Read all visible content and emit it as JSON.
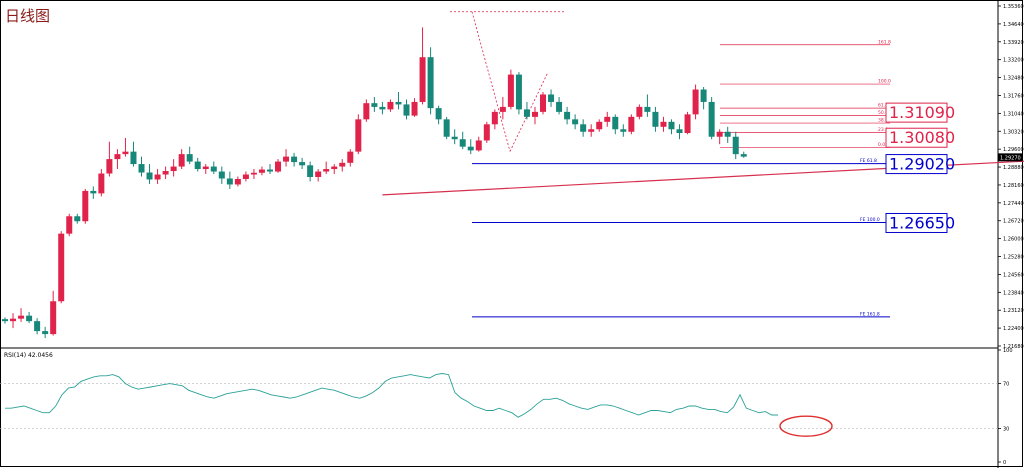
{
  "title": "日线图",
  "colors": {
    "up": "#e0234a",
    "down": "#17877a",
    "trendline": "#d7304f",
    "fibo": "#e0234a",
    "fe": "#0000cc",
    "rsi": "#2aa198",
    "axis": "#000000",
    "grid": "#b8b8b8",
    "circle": "#e03030"
  },
  "chart_data": [
    {
      "type": "candlestick",
      "title": "日线图",
      "ylim": [
        1.2168,
        1.3536
      ],
      "y_ticks": [
        "1.35360",
        "1.34640",
        "1.33920",
        "1.33200",
        "1.32480",
        "1.31760",
        "1.31040",
        "1.30320",
        "1.29600",
        "1.28880",
        "1.28160",
        "1.27440",
        "1.26720",
        "1.26000",
        "1.25280",
        "1.24560",
        "1.23840",
        "1.23120",
        "1.22400",
        "1.21680"
      ],
      "current_price": "1.29270",
      "candles": [
        [
          1.2276,
          1.2283,
          1.2258,
          1.2268
        ],
        [
          1.2268,
          1.23,
          1.224,
          1.2278
        ],
        [
          1.2278,
          1.232,
          1.2265,
          1.229
        ],
        [
          1.229,
          1.2305,
          1.226,
          1.2268
        ],
        [
          1.2268,
          1.228,
          1.2215,
          1.2228
        ],
        [
          1.2228,
          1.2245,
          1.22,
          1.2216
        ],
        [
          1.2216,
          1.239,
          1.221,
          1.2348
        ],
        [
          1.2348,
          1.263,
          1.234,
          1.262
        ],
        [
          1.262,
          1.27,
          1.261,
          1.269
        ],
        [
          1.269,
          1.27,
          1.266,
          1.267
        ],
        [
          1.267,
          1.28,
          1.266,
          1.2792
        ],
        [
          1.2792,
          1.281,
          1.276,
          1.2782
        ],
        [
          1.2782,
          1.288,
          1.277,
          1.2862
        ],
        [
          1.2862,
          1.299,
          1.285,
          1.292
        ],
        [
          1.292,
          1.296,
          1.288,
          1.294
        ],
        [
          1.294,
          1.3005,
          1.293,
          1.295
        ],
        [
          1.295,
          1.299,
          1.289,
          1.29
        ],
        [
          1.29,
          1.293,
          1.285,
          1.2866
        ],
        [
          1.2866,
          1.29,
          1.282,
          1.2838
        ],
        [
          1.2838,
          1.288,
          1.282,
          1.2858
        ],
        [
          1.2858,
          1.289,
          1.284,
          1.2872
        ],
        [
          1.2872,
          1.292,
          1.285,
          1.289
        ],
        [
          1.289,
          1.296,
          1.288,
          1.294
        ],
        [
          1.294,
          1.297,
          1.29,
          1.291
        ],
        [
          1.291,
          1.2925,
          1.287,
          1.288
        ],
        [
          1.288,
          1.29,
          1.286,
          1.289
        ],
        [
          1.289,
          1.291,
          1.286,
          1.287
        ],
        [
          1.287,
          1.289,
          1.282,
          1.2842
        ],
        [
          1.2842,
          1.287,
          1.28,
          1.2818
        ],
        [
          1.2818,
          1.285,
          1.281,
          1.284
        ],
        [
          1.284,
          1.287,
          1.283,
          1.2858
        ],
        [
          1.2858,
          1.288,
          1.284,
          1.2865
        ],
        [
          1.2865,
          1.289,
          1.2855,
          1.2878
        ],
        [
          1.2878,
          1.29,
          1.286,
          1.287
        ],
        [
          1.287,
          1.292,
          1.2865,
          1.291
        ],
        [
          1.291,
          1.296,
          1.289,
          1.293
        ],
        [
          1.293,
          1.2945,
          1.289,
          1.2908
        ],
        [
          1.2908,
          1.2925,
          1.288,
          1.2895
        ],
        [
          1.2895,
          1.291,
          1.283,
          1.2848
        ],
        [
          1.2848,
          1.288,
          1.283,
          1.287
        ],
        [
          1.287,
          1.291,
          1.286,
          1.288
        ],
        [
          1.288,
          1.29,
          1.286,
          1.289
        ],
        [
          1.289,
          1.292,
          1.287,
          1.2905
        ],
        [
          1.2905,
          1.296,
          1.289,
          1.295
        ],
        [
          1.295,
          1.31,
          1.294,
          1.308
        ],
        [
          1.308,
          1.316,
          1.307,
          1.3145
        ],
        [
          1.3145,
          1.317,
          1.311,
          1.313
        ],
        [
          1.313,
          1.315,
          1.31,
          1.312
        ],
        [
          1.312,
          1.316,
          1.311,
          1.315
        ],
        [
          1.315,
          1.319,
          1.312,
          1.314
        ],
        [
          1.314,
          1.316,
          1.308,
          1.3095
        ],
        [
          1.3095,
          1.3165,
          1.309,
          1.315
        ],
        [
          1.315,
          1.345,
          1.314,
          1.333
        ],
        [
          1.333,
          1.337,
          1.31,
          1.3125
        ],
        [
          1.3125,
          1.3135,
          1.306,
          1.308
        ],
        [
          1.308,
          1.309,
          1.3,
          1.301
        ],
        [
          1.301,
          1.304,
          1.298,
          1.3
        ],
        [
          1.3,
          1.303,
          1.296,
          1.297
        ],
        [
          1.297,
          1.3,
          1.294,
          1.2955
        ],
        [
          1.2955,
          1.301,
          1.295,
          1.2995
        ],
        [
          1.2995,
          1.307,
          1.2985,
          1.306
        ],
        [
          1.306,
          1.312,
          1.304,
          1.311
        ],
        [
          1.311,
          1.317,
          1.308,
          1.313
        ],
        [
          1.313,
          1.328,
          1.312,
          1.326
        ],
        [
          1.326,
          1.327,
          1.31,
          1.312
        ],
        [
          1.312,
          1.315,
          1.308,
          1.309
        ],
        [
          1.309,
          1.313,
          1.306,
          1.311
        ],
        [
          1.311,
          1.319,
          1.31,
          1.318
        ],
        [
          1.318,
          1.32,
          1.313,
          1.315
        ],
        [
          1.315,
          1.317,
          1.31,
          1.311
        ],
        [
          1.311,
          1.313,
          1.306,
          1.308
        ],
        [
          1.308,
          1.31,
          1.304,
          1.306
        ],
        [
          1.306,
          1.308,
          1.301,
          1.303
        ],
        [
          1.303,
          1.306,
          1.301,
          1.304
        ],
        [
          1.304,
          1.308,
          1.303,
          1.307
        ],
        [
          1.307,
          1.311,
          1.305,
          1.309
        ],
        [
          1.309,
          1.31,
          1.302,
          1.304
        ],
        [
          1.304,
          1.306,
          1.301,
          1.303
        ],
        [
          1.303,
          1.31,
          1.302,
          1.309
        ],
        [
          1.309,
          1.314,
          1.308,
          1.313
        ],
        [
          1.313,
          1.318,
          1.309,
          1.311
        ],
        [
          1.311,
          1.313,
          1.303,
          1.305
        ],
        [
          1.305,
          1.309,
          1.303,
          1.307
        ],
        [
          1.307,
          1.308,
          1.302,
          1.304
        ],
        [
          1.304,
          1.306,
          1.3,
          1.3025
        ],
        [
          1.3025,
          1.311,
          1.302,
          1.31
        ],
        [
          1.31,
          1.322,
          1.308,
          1.32
        ],
        [
          1.32,
          1.321,
          1.312,
          1.315
        ],
        [
          1.315,
          1.317,
          1.3,
          1.301
        ],
        [
          1.301,
          1.304,
          1.298,
          1.303
        ],
        [
          1.303,
          1.305,
          1.2985,
          1.301
        ],
        [
          1.301,
          1.303,
          1.292,
          1.294
        ],
        [
          1.294,
          1.295,
          1.2925,
          1.293
        ]
      ],
      "trendline": {
        "x": [
          47,
          211
        ],
        "y": [
          1.2776,
          1.3055
        ]
      },
      "fibonacci": {
        "levels": [
          {
            "label": "161.8",
            "y": 1.338
          },
          {
            "label": "100.0",
            "y": 1.3222
          },
          {
            "label": "61.8",
            "y": 1.3125
          },
          {
            "label": "50.0",
            "y": 1.3095
          },
          {
            "label": "38.2",
            "y": 1.3065
          },
          {
            "label": "23.6",
            "y": 1.3027
          },
          {
            "label": "0.0",
            "y": 1.2967
          }
        ]
      },
      "fibo_expansion": [
        {
          "label": "FE 61.8",
          "y": 1.2902
        },
        {
          "label": "FE 100.0",
          "y": 1.2665
        },
        {
          "label": "FE 161.8",
          "y": 1.2285
        }
      ],
      "price_labels": [
        {
          "text": "1.31090",
          "y": 1.3109,
          "color": "red"
        },
        {
          "text": "1.30080",
          "y": 1.3008,
          "color": "red"
        },
        {
          "text": "1.29020",
          "y": 1.2902,
          "color": "blue"
        },
        {
          "text": "1.26650",
          "y": 1.2665,
          "color": "blue"
        }
      ],
      "dashed_top": {
        "y": 1.3513
      }
    },
    {
      "type": "line",
      "title": "RSI(14) 42.0456",
      "ylim": [
        0,
        100
      ],
      "y_ticks": [
        "100",
        "70",
        "30",
        "0"
      ],
      "levels": [
        70,
        30
      ],
      "values": [
        48,
        48,
        49,
        50,
        48,
        46,
        44,
        44,
        50,
        60,
        66,
        67,
        72,
        74,
        76,
        77,
        77,
        78,
        76,
        70,
        67,
        65,
        66,
        67,
        68,
        69,
        70,
        69,
        68,
        64,
        62,
        60,
        58,
        57,
        59,
        61,
        62,
        63,
        64,
        65,
        64,
        62,
        60,
        59,
        58,
        57,
        58,
        60,
        62,
        64,
        66,
        65,
        64,
        62,
        60,
        58,
        57,
        59,
        62,
        66,
        72,
        75,
        76,
        77,
        78,
        77,
        76,
        75,
        78,
        79,
        78,
        62,
        57,
        54,
        50,
        48,
        46,
        46,
        48,
        46,
        44,
        40,
        43,
        47,
        52,
        56,
        56,
        57,
        55,
        52,
        50,
        48,
        47,
        49,
        51,
        51,
        50,
        48,
        46,
        44,
        42,
        44,
        46,
        46,
        45,
        44,
        47,
        48,
        50,
        50,
        48,
        47,
        47,
        45,
        44,
        49,
        60,
        48,
        46,
        44,
        45,
        42,
        42
      ]
    }
  ]
}
